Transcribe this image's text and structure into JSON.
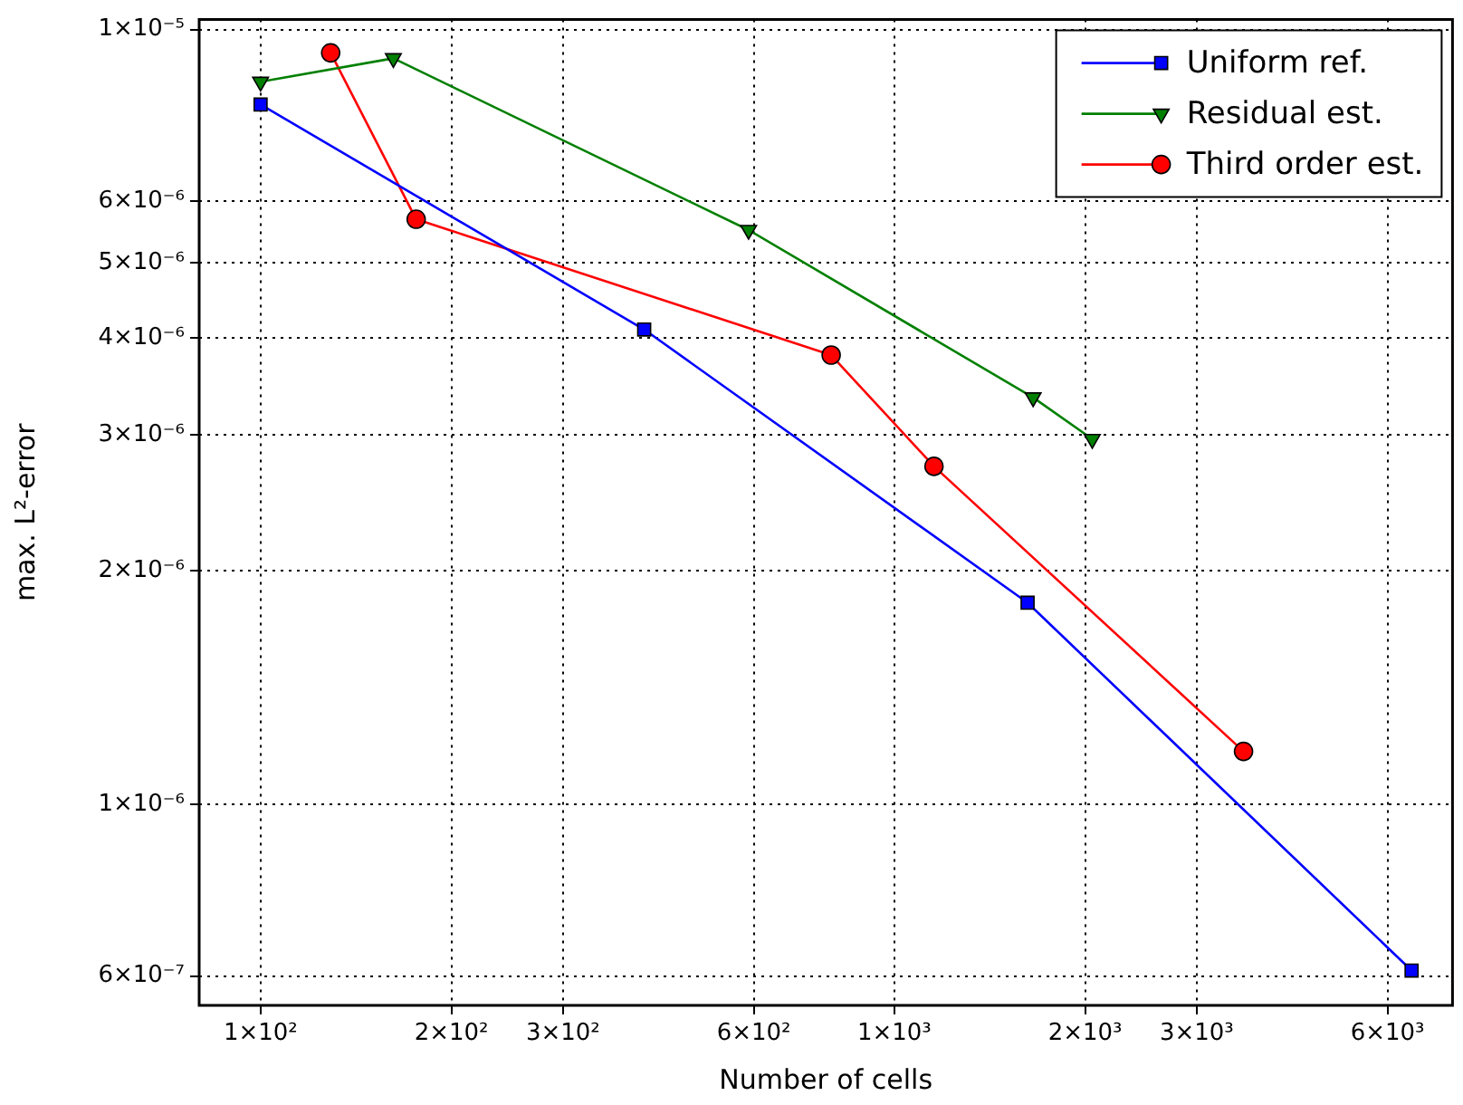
{
  "chart_data": {
    "type": "line",
    "xlabel": "Number of cells",
    "ylabel": "max. L²-error",
    "log": "xy",
    "grid": true,
    "legend": "top right",
    "line_style": "solid",
    "xlim": [
      80,
      7600
    ],
    "ylim": [
      5.5e-07,
      1.03e-05
    ],
    "xticks": [
      {
        "value": 100,
        "label": "1×10²"
      },
      {
        "value": 200,
        "label": "2×10²"
      },
      {
        "value": 300,
        "label": "3×10²"
      },
      {
        "value": 600,
        "label": "6×10²"
      },
      {
        "value": 1000,
        "label": "1×10³"
      },
      {
        "value": 2000,
        "label": "2×10³"
      },
      {
        "value": 3000,
        "label": "3×10³"
      },
      {
        "value": 6000,
        "label": "6×10³"
      }
    ],
    "yticks": [
      {
        "value": 6e-07,
        "label": "6×10⁻⁷"
      },
      {
        "value": 1e-06,
        "label": "1×10⁻⁶"
      },
      {
        "value": 2e-06,
        "label": "2×10⁻⁶"
      },
      {
        "value": 3e-06,
        "label": "3×10⁻⁶"
      },
      {
        "value": 4e-06,
        "label": "4×10⁻⁶"
      },
      {
        "value": 5e-06,
        "label": "5×10⁻⁶"
      },
      {
        "value": 6e-06,
        "label": "6×10⁻⁶"
      },
      {
        "value": 1e-05,
        "label": "1×10⁻⁵"
      }
    ],
    "series": [
      {
        "name": "Uniform ref.",
        "color": "#0000ff",
        "marker": "square",
        "x": [
          100,
          403,
          1623,
          6550
        ],
        "values": [
          8e-06,
          4.1e-06,
          1.82e-06,
          6.1e-07
        ]
      },
      {
        "name": "Residual est.",
        "color": "#008000",
        "marker": "triangle",
        "x": [
          100,
          162,
          589,
          1656,
          2053
        ],
        "values": [
          8.56e-06,
          9.18e-06,
          5.51e-06,
          3.35e-06,
          2.96e-06
        ]
      },
      {
        "name": "Third order est.",
        "color": "#ff0000",
        "marker": "circle",
        "x": [
          129,
          176,
          795,
          1155,
          3557
        ],
        "values": [
          9.33e-06,
          5.69e-06,
          3.8e-06,
          2.73e-06,
          1.17e-06
        ]
      }
    ]
  }
}
